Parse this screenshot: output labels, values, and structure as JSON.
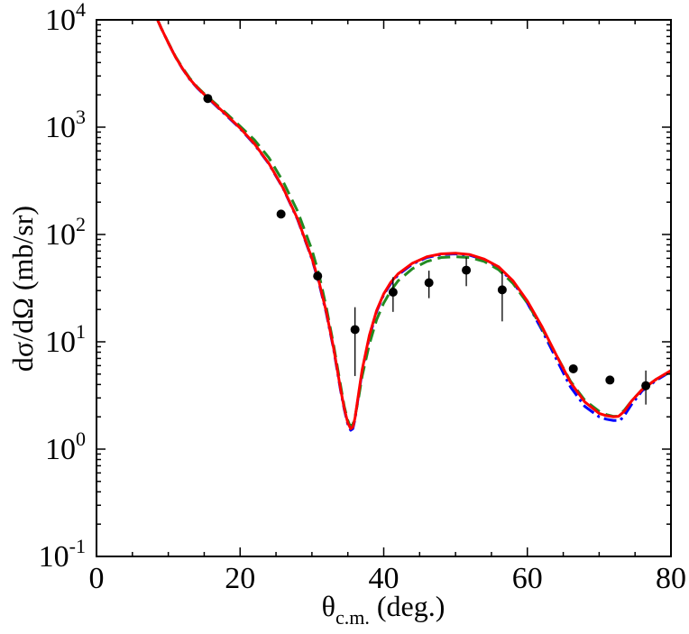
{
  "chart_data": {
    "type": "scatter",
    "xlabel": {
      "main": "θ",
      "sub": "c.m.",
      "rest": " (deg.)"
    },
    "ylabel": "dσ/dΩ (mb/sr)",
    "xlim": [
      0,
      80
    ],
    "ylim": [
      0.1,
      10000
    ],
    "yscale": "log",
    "x_ticks": [
      0,
      20,
      40,
      60,
      80
    ],
    "x_tick_labels": [
      "0",
      "20",
      "40",
      "60",
      "80"
    ],
    "y_ticks": [
      {
        "base": "10",
        "exp": "-1",
        "value": 0.1
      },
      {
        "base": "10",
        "exp": "0",
        "value": 1
      },
      {
        "base": "10",
        "exp": "1",
        "value": 10
      },
      {
        "base": "10",
        "exp": "2",
        "value": 100
      },
      {
        "base": "10",
        "exp": "3",
        "value": 1000
      },
      {
        "base": "10",
        "exp": "4",
        "value": 10000
      }
    ],
    "grid": false,
    "colors": {
      "solid": "#ff0000",
      "dashed": "#228B22",
      "dashdot": "#0000ff",
      "points": "#000000"
    },
    "data_points": [
      {
        "x": 15.5,
        "y": 1850,
        "err_lo": 1850,
        "err_hi": 1850
      },
      {
        "x": 25.7,
        "y": 155,
        "err_lo": 155,
        "err_hi": 155
      },
      {
        "x": 30.8,
        "y": 41,
        "err_lo": 41,
        "err_hi": 41
      },
      {
        "x": 36.0,
        "y": 13,
        "err_lo": 4.8,
        "err_hi": 21
      },
      {
        "x": 41.3,
        "y": 29,
        "err_lo": 19,
        "err_hi": 40
      },
      {
        "x": 46.3,
        "y": 35.5,
        "err_lo": 25.5,
        "err_hi": 46
      },
      {
        "x": 51.5,
        "y": 46.5,
        "err_lo": 33,
        "err_hi": 61
      },
      {
        "x": 56.5,
        "y": 30.5,
        "err_lo": 15.5,
        "err_hi": 45
      },
      {
        "x": 66.4,
        "y": 5.6,
        "err_lo": 5.6,
        "err_hi": 5.6
      },
      {
        "x": 71.5,
        "y": 4.4,
        "err_lo": 4.4,
        "err_hi": 4.4
      },
      {
        "x": 76.5,
        "y": 3.9,
        "err_lo": 2.6,
        "err_hi": 5.4
      }
    ],
    "series": [
      {
        "style": "solid",
        "color": "#ff0000",
        "x": [
          8.5,
          9,
          10,
          11,
          12,
          13,
          14,
          15,
          16,
          17,
          18,
          20,
          22,
          24,
          26,
          28,
          30,
          31,
          32,
          33,
          34,
          34.5,
          35,
          35.4,
          35.7,
          36,
          36.5,
          37,
          38,
          39,
          40,
          41,
          42,
          44,
          46,
          48,
          50,
          52,
          54,
          56,
          58,
          60,
          62,
          64,
          66,
          68,
          70,
          71,
          72,
          72.7,
          73.5,
          74.5,
          76,
          78,
          80
        ],
        "y": [
          10000,
          8400,
          6100,
          4500,
          3500,
          2800,
          2350,
          2020,
          1760,
          1520,
          1320,
          980,
          700,
          460,
          270,
          140,
          60,
          36,
          19,
          8.9,
          3.6,
          2.4,
          1.75,
          1.55,
          1.6,
          1.95,
          3.3,
          5.5,
          11.5,
          19.5,
          28,
          36,
          43,
          54,
          62,
          66,
          67,
          65,
          59,
          50,
          37,
          24,
          14,
          7.6,
          4.2,
          2.75,
          2.15,
          2.05,
          2.0,
          2.02,
          2.25,
          2.8,
          3.6,
          4.5,
          5.4
        ]
      },
      {
        "style": "dashed",
        "color": "#228B22",
        "x": [
          8.5,
          9,
          10,
          11,
          12,
          13,
          14,
          15,
          16,
          17,
          18,
          20,
          22,
          24,
          26,
          28,
          30,
          31,
          32,
          33,
          34,
          34.5,
          35,
          35.3,
          35.7,
          36,
          36.5,
          37,
          38,
          39,
          40,
          41,
          42,
          44,
          46,
          48,
          50,
          52,
          54,
          56,
          58,
          60,
          62,
          64,
          66,
          68,
          70,
          71,
          72,
          72.5,
          73.5,
          74.5,
          76,
          78,
          80
        ],
        "y": [
          10000,
          8400,
          6150,
          4550,
          3550,
          2850,
          2380,
          2050,
          1790,
          1560,
          1360,
          1020,
          760,
          520,
          310,
          165,
          72,
          42,
          21,
          9.5,
          3.9,
          2.5,
          1.85,
          1.65,
          1.7,
          2.0,
          3.0,
          4.8,
          9.5,
          16,
          23,
          30,
          37,
          48,
          56,
          61,
          62,
          61,
          56,
          47,
          35,
          23,
          13.5,
          7.6,
          4.3,
          2.85,
          2.25,
          2.1,
          2.02,
          2.02,
          2.3,
          2.8,
          3.6,
          4.5,
          5.3
        ]
      },
      {
        "style": "dashdot",
        "color": "#0000ff",
        "x": [
          8.5,
          9,
          10,
          11,
          12,
          13,
          14,
          15,
          16,
          17,
          18,
          20,
          22,
          24,
          26,
          28,
          30,
          31,
          32,
          33,
          34,
          34.5,
          35,
          35.4,
          35.7,
          36,
          36.5,
          37,
          38,
          39,
          40,
          41,
          42,
          44,
          46,
          48,
          50,
          52,
          54,
          56,
          58,
          60,
          62,
          64,
          66,
          68,
          70,
          71,
          72,
          72.9,
          73.5,
          74.5,
          76,
          78,
          80
        ],
        "y": [
          10000,
          8400,
          6100,
          4500,
          3480,
          2780,
          2330,
          2000,
          1740,
          1500,
          1300,
          970,
          690,
          455,
          268,
          138,
          59,
          35,
          18.5,
          8.7,
          3.5,
          2.35,
          1.7,
          1.5,
          1.55,
          1.9,
          3.2,
          5.3,
          11,
          19,
          27.5,
          35,
          42,
          53,
          61,
          65,
          66,
          64,
          58,
          49,
          36,
          23,
          13,
          7.0,
          3.8,
          2.5,
          2.0,
          1.9,
          1.85,
          1.85,
          2.05,
          2.6,
          3.5,
          4.4,
          5.3
        ]
      }
    ]
  }
}
